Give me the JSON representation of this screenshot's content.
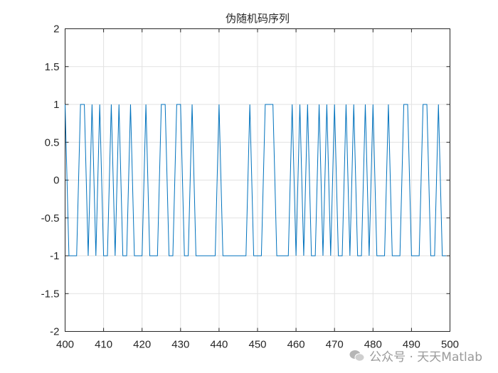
{
  "chart_data": {
    "type": "line",
    "title": "伪随机码序列",
    "xlabel": "",
    "ylabel": "",
    "xlim": [
      400,
      500
    ],
    "ylim": [
      -2,
      2
    ],
    "xticks": [
      "400",
      "410",
      "420",
      "430",
      "440",
      "450",
      "460",
      "470",
      "480",
      "490",
      "500"
    ],
    "yticks": [
      "2",
      "1.5",
      "1",
      "0.5",
      "0",
      "-0.5",
      "-1",
      "-1.5",
      "-2"
    ],
    "grid": true,
    "series_color": "#0072bd",
    "x_start": 400,
    "values": [
      1,
      -1,
      -1,
      -1,
      1,
      1,
      -1,
      1,
      -1,
      1,
      -1,
      -1,
      1,
      -1,
      1,
      -1,
      -1,
      1,
      -1,
      -1,
      -1,
      1,
      -1,
      -1,
      -1,
      1,
      1,
      -1,
      -1,
      1,
      1,
      -1,
      -1,
      1,
      -1,
      -1,
      -1,
      -1,
      -1,
      -1,
      1,
      -1,
      -1,
      -1,
      -1,
      -1,
      -1,
      -1,
      1,
      -1,
      -1,
      -1,
      1,
      1,
      1,
      -1,
      -1,
      -1,
      -1,
      1,
      -1,
      1,
      -1,
      1,
      -1,
      -1,
      1,
      -1,
      1,
      -1,
      1,
      -1,
      -1,
      1,
      -1,
      1,
      -1,
      -1,
      1,
      -1,
      1,
      -1,
      -1,
      -1,
      1,
      -1,
      -1,
      -1,
      1,
      1,
      -1,
      -1,
      -1,
      1,
      1,
      -1,
      -1,
      1,
      -1,
      -1
    ]
  },
  "watermark": {
    "text": "公众号 · 天天Matlab",
    "icon": "wechat-icon"
  }
}
